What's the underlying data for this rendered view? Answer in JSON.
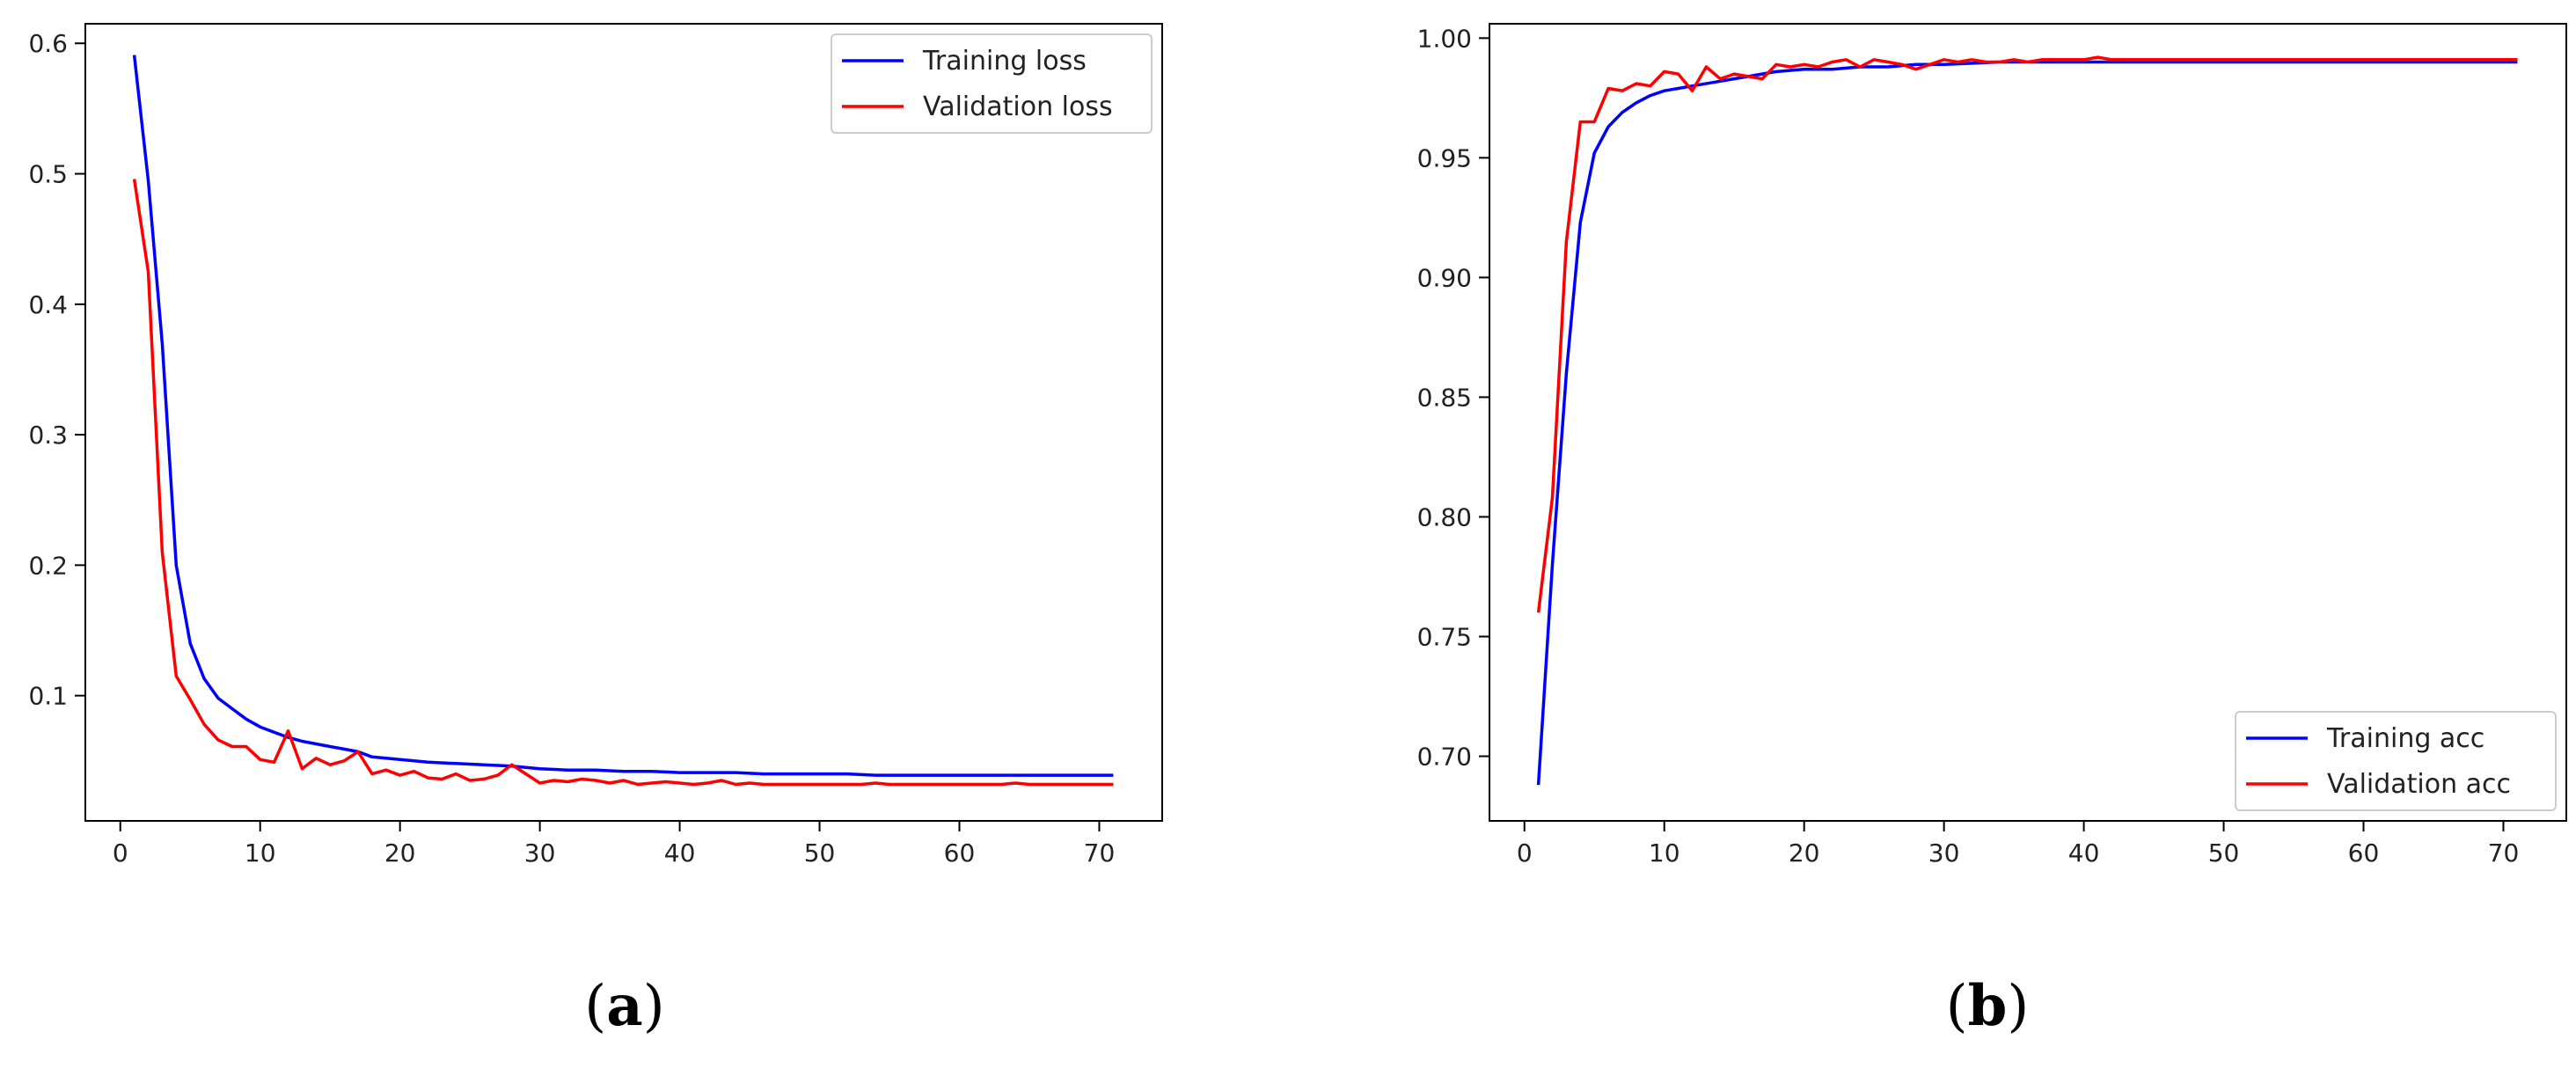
{
  "colors": {
    "training": "#0000ff",
    "validation": "#ff0000",
    "axis": "#000000"
  },
  "chart_data": [
    {
      "type": "line",
      "caption_letter": "a",
      "xlim": [
        -2.5,
        74.5
      ],
      "ylim": [
        0.004,
        0.615
      ],
      "xticks": [
        0,
        10,
        20,
        30,
        40,
        50,
        60,
        70
      ],
      "yticks": [
        0.1,
        0.2,
        0.3,
        0.4,
        0.5,
        0.6
      ],
      "ytick_decimals": 1,
      "legend_position": "top-right",
      "grid": false,
      "series": [
        {
          "name": "Training loss",
          "color": "#0000ff",
          "x": [
            1,
            2,
            3,
            4,
            5,
            6,
            7,
            8,
            9,
            10,
            11,
            12,
            13,
            14,
            15,
            16,
            17,
            18,
            19,
            20,
            22,
            24,
            26,
            28,
            30,
            32,
            34,
            36,
            38,
            40,
            42,
            44,
            46,
            48,
            50,
            52,
            54,
            56,
            58,
            60,
            62,
            64,
            66,
            68,
            70,
            71
          ],
          "y": [
            0.591,
            0.495,
            0.37,
            0.2,
            0.14,
            0.113,
            0.098,
            0.09,
            0.082,
            0.076,
            0.072,
            0.068,
            0.065,
            0.063,
            0.061,
            0.059,
            0.057,
            0.053,
            0.052,
            0.051,
            0.049,
            0.048,
            0.047,
            0.046,
            0.044,
            0.043,
            0.043,
            0.042,
            0.042,
            0.041,
            0.041,
            0.041,
            0.04,
            0.04,
            0.04,
            0.04,
            0.039,
            0.039,
            0.039,
            0.039,
            0.039,
            0.039,
            0.039,
            0.039,
            0.039,
            0.039
          ]
        },
        {
          "name": "Validation loss",
          "color": "#ff0000",
          "x": [
            1,
            2,
            3,
            4,
            5,
            6,
            7,
            8,
            9,
            10,
            11,
            12,
            13,
            14,
            15,
            16,
            17,
            18,
            19,
            20,
            21,
            22,
            23,
            24,
            25,
            26,
            27,
            28,
            29,
            30,
            31,
            32,
            33,
            34,
            35,
            36,
            37,
            38,
            39,
            40,
            41,
            42,
            43,
            44,
            45,
            46,
            47,
            48,
            49,
            50,
            51,
            52,
            53,
            54,
            55,
            56,
            57,
            58,
            59,
            60,
            61,
            62,
            63,
            64,
            65,
            66,
            67,
            68,
            69,
            70,
            71
          ],
          "y": [
            0.496,
            0.425,
            0.21,
            0.115,
            0.097,
            0.078,
            0.066,
            0.061,
            0.061,
            0.051,
            0.049,
            0.073,
            0.044,
            0.052,
            0.047,
            0.05,
            0.057,
            0.04,
            0.043,
            0.039,
            0.042,
            0.037,
            0.036,
            0.04,
            0.035,
            0.036,
            0.039,
            0.047,
            0.04,
            0.033,
            0.035,
            0.034,
            0.036,
            0.035,
            0.033,
            0.035,
            0.032,
            0.033,
            0.034,
            0.033,
            0.032,
            0.033,
            0.035,
            0.032,
            0.033,
            0.032,
            0.032,
            0.032,
            0.032,
            0.032,
            0.032,
            0.032,
            0.032,
            0.033,
            0.032,
            0.032,
            0.032,
            0.032,
            0.032,
            0.032,
            0.032,
            0.032,
            0.032,
            0.033,
            0.032,
            0.032,
            0.032,
            0.032,
            0.032,
            0.032,
            0.032
          ]
        }
      ]
    },
    {
      "type": "line",
      "caption_letter": "b",
      "xlim": [
        -2.5,
        74.5
      ],
      "ylim": [
        0.673,
        1.006
      ],
      "xticks": [
        0,
        10,
        20,
        30,
        40,
        50,
        60,
        70
      ],
      "yticks": [
        0.7,
        0.75,
        0.8,
        0.85,
        0.9,
        0.95,
        1.0
      ],
      "ytick_decimals": 2,
      "legend_position": "bottom-right",
      "grid": false,
      "series": [
        {
          "name": "Training acc",
          "color": "#0000ff",
          "x": [
            1,
            2,
            3,
            4,
            5,
            6,
            7,
            8,
            9,
            10,
            11,
            12,
            14,
            16,
            18,
            20,
            22,
            24,
            26,
            28,
            30,
            34,
            40,
            50,
            60,
            70,
            71
          ],
          "y": [
            0.688,
            0.78,
            0.86,
            0.923,
            0.952,
            0.963,
            0.969,
            0.973,
            0.976,
            0.978,
            0.979,
            0.98,
            0.982,
            0.984,
            0.986,
            0.987,
            0.987,
            0.988,
            0.988,
            0.989,
            0.989,
            0.99,
            0.99,
            0.99,
            0.99,
            0.99,
            0.99
          ]
        },
        {
          "name": "Validation acc",
          "color": "#ff0000",
          "x": [
            1,
            2,
            3,
            4,
            5,
            6,
            7,
            8,
            9,
            10,
            11,
            12,
            13,
            14,
            15,
            16,
            17,
            18,
            19,
            20,
            21,
            22,
            23,
            24,
            25,
            26,
            27,
            28,
            29,
            30,
            31,
            32,
            33,
            34,
            35,
            36,
            37,
            38,
            39,
            40,
            41,
            42,
            43,
            44,
            45,
            46,
            47,
            48,
            49,
            50,
            51,
            52,
            53,
            54,
            55,
            56,
            57,
            58,
            59,
            60,
            61,
            62,
            63,
            64,
            65,
            66,
            67,
            68,
            69,
            70,
            71
          ],
          "y": [
            0.76,
            0.808,
            0.915,
            0.965,
            0.965,
            0.979,
            0.978,
            0.981,
            0.98,
            0.986,
            0.985,
            0.978,
            0.988,
            0.983,
            0.985,
            0.984,
            0.983,
            0.989,
            0.988,
            0.989,
            0.988,
            0.99,
            0.991,
            0.988,
            0.991,
            0.99,
            0.989,
            0.987,
            0.989,
            0.991,
            0.99,
            0.991,
            0.99,
            0.99,
            0.991,
            0.99,
            0.991,
            0.991,
            0.991,
            0.991,
            0.992,
            0.991,
            0.991,
            0.991,
            0.991,
            0.991,
            0.991,
            0.991,
            0.991,
            0.991,
            0.991,
            0.991,
            0.991,
            0.991,
            0.991,
            0.991,
            0.991,
            0.991,
            0.991,
            0.991,
            0.991,
            0.991,
            0.991,
            0.991,
            0.991,
            0.991,
            0.991,
            0.991,
            0.991,
            0.991,
            0.991
          ]
        }
      ]
    }
  ]
}
